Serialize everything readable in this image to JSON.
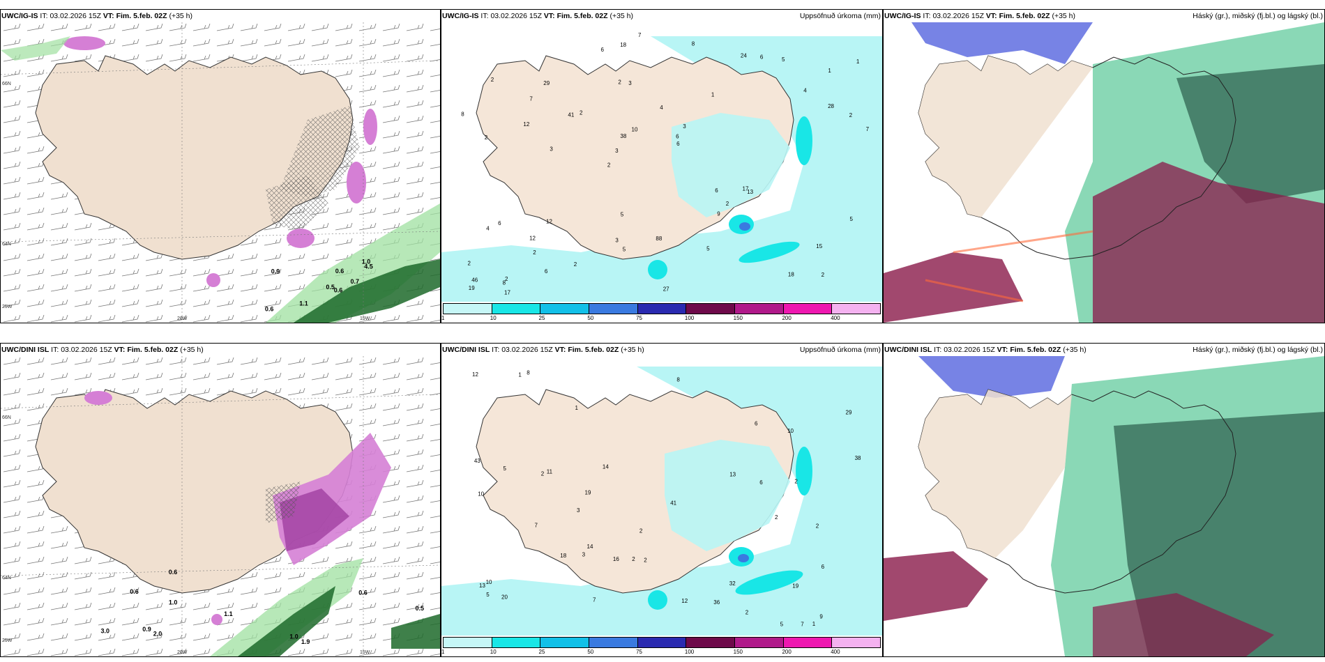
{
  "panels": {
    "p1": {
      "model": "UWC/IG-IS",
      "it": "03.02.2026 15Z",
      "vt": "Fim. 5.feb. 02Z",
      "lead": "(+35 h)",
      "right_title": ""
    },
    "p2": {
      "model": "UWC/IG-IS",
      "it": "03.02.2026 15Z",
      "vt": "Fim. 5.feb. 02Z",
      "lead": "(+35 h)",
      "right_title": "Uppsöfnuð úrkoma (mm)"
    },
    "p3": {
      "model": "UWC/IG-IS",
      "it": "03.02.2026 15Z",
      "vt": "Fim. 5.feb. 02Z",
      "lead": "(+35 h)",
      "right_title": "Háský (gr.), miðský (fj.bl.) og lágský (bl.)"
    },
    "p4": {
      "model": "UWC/DINI ISL",
      "it": "03.02.2026 15Z",
      "vt": "Fim. 5.feb. 02Z",
      "lead": "(+35 h)",
      "right_title": ""
    },
    "p5": {
      "model": "UWC/DINI ISL",
      "it": "03.02.2026 15Z",
      "vt": "Fim. 5.feb. 02Z",
      "lead": "(+35 h)",
      "right_title": "Uppsöfnuð úrkoma (mm)"
    },
    "p6": {
      "model": "UWC/DINI ISL",
      "it": "03.02.2026 15Z",
      "vt": "Fim. 5.feb. 02Z",
      "lead": "(+35 h)",
      "right_title": "Háský (gr.), miðský (fj.bl.) og lágský (bl.)"
    }
  },
  "labels": {
    "it": "IT:",
    "vt": "VT:"
  },
  "axes": {
    "lat66": "66N",
    "lat64": "64N",
    "lon20": "20W",
    "lon15": "15W",
    "lon25": "25W"
  },
  "legend": {
    "ticks": [
      "1",
      "10",
      "25",
      "50",
      "75",
      "100",
      "150",
      "200",
      "400"
    ],
    "colors": [
      "#c6f7f7",
      "#19e6e6",
      "#12c0e8",
      "#3a7ae0",
      "#2a2ab0",
      "#6e0a4a",
      "#b01a8a",
      "#ee18b0",
      "#f4b2f0"
    ]
  },
  "precip_top": [
    "2",
    "2",
    "1",
    "2",
    "1",
    "2",
    "2",
    "4",
    "6",
    "2",
    "2",
    "2",
    "3",
    "3",
    "13",
    "2",
    "18",
    "7",
    "6",
    "28",
    "3",
    "3",
    "38",
    "29",
    "24",
    "12",
    "18",
    "15",
    "17",
    "27",
    "41",
    "12",
    "9",
    "6",
    "2",
    "6",
    "46",
    "5",
    "6",
    "4",
    "4",
    "1",
    "2",
    "5",
    "12",
    "17",
    "19",
    "88",
    "5",
    "7",
    "3",
    "8",
    "7",
    "6",
    "8",
    "8",
    "6",
    "10",
    "5",
    "5",
    "2"
  ],
  "precip_bot": [
    "2",
    "2",
    "1",
    "2",
    "1",
    "1",
    "2",
    "3",
    "3",
    "6",
    "2",
    "8",
    "12",
    "5",
    "19",
    "32",
    "41",
    "38",
    "29",
    "14",
    "7",
    "11",
    "36",
    "18",
    "19",
    "13",
    "12",
    "10",
    "10",
    "13",
    "14",
    "16",
    "20",
    "6",
    "6",
    "43",
    "5",
    "8",
    "7",
    "7",
    "10",
    "9",
    "2",
    "2",
    "2",
    "5"
  ],
  "wind_labels_top": [
    "0.6",
    "0.9",
    "0.5",
    "0.6",
    "0.7",
    "1.1",
    "1.0",
    "0.6",
    "4.5"
  ],
  "wind_labels_bot": [
    "1.9",
    "0.6",
    "0.9",
    "0.6",
    "0.6",
    "1.0",
    "0.5",
    "1.0",
    "1.1",
    "2.0",
    "3.0"
  ]
}
